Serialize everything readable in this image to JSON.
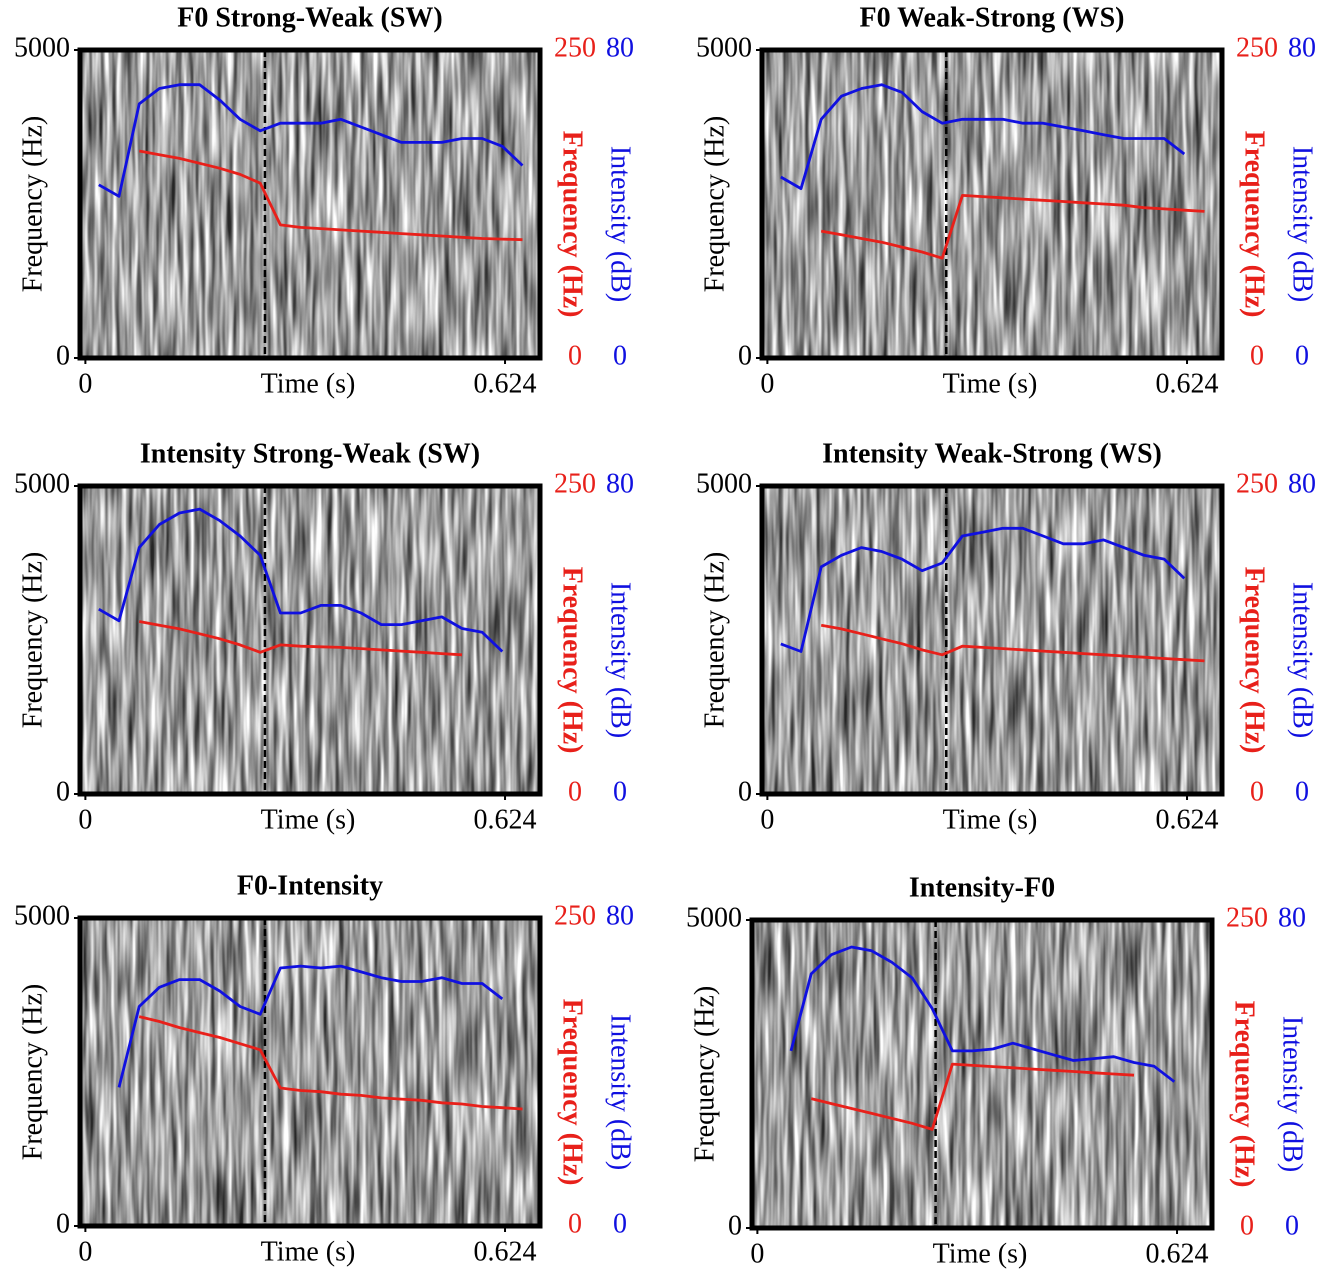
{
  "chart_data": [
    {
      "type": "line",
      "title": "F0 Strong-Weak (SW)",
      "xlabel": "Time (s)",
      "ylabel": "Frequency (Hz)",
      "y2label": "Frequency (Hz)",
      "y3label": "Intensity (dB)",
      "xlim": [
        -0.008,
        0.676
      ],
      "xticks": [
        0,
        0.624
      ],
      "ylim": [
        0,
        5000
      ],
      "yticks": [
        0,
        5000
      ],
      "y2lim": [
        0,
        250
      ],
      "y2ticks": [
        0,
        250
      ],
      "y3lim": [
        0,
        80
      ],
      "y3ticks": [
        0,
        80
      ],
      "y2color": "#e8201a",
      "y3color": "#1010e0",
      "boundary": 0.267,
      "x": [
        0.02,
        0.05,
        0.08,
        0.11,
        0.14,
        0.17,
        0.2,
        0.23,
        0.26,
        0.29,
        0.32,
        0.35,
        0.38,
        0.41,
        0.44,
        0.47,
        0.5,
        0.53,
        0.56,
        0.59,
        0.62,
        0.65
      ],
      "series": [
        {
          "color": "#e8201a",
          "axis": "y2",
          "values": [
            null,
            null,
            168,
            165,
            162,
            158,
            154,
            149,
            142,
            108,
            106,
            105,
            104,
            103,
            102,
            101,
            100,
            99,
            98,
            97,
            96.5,
            96
          ]
        },
        {
          "color": "#1010e0",
          "axis": "y3",
          "values": [
            45,
            42,
            66,
            70,
            71,
            71,
            67,
            62,
            59,
            61,
            61,
            61,
            62,
            60,
            58,
            56,
            56,
            56,
            57,
            57,
            55,
            50
          ]
        }
      ]
    },
    {
      "type": "line",
      "title": "F0 Weak-Strong (WS)",
      "xlabel": "Time (s)",
      "ylabel": "Frequency (Hz)",
      "y2label": "Frequency (Hz)",
      "y3label": "Intensity (dB)",
      "xlim": [
        -0.008,
        0.676
      ],
      "xticks": [
        0,
        0.624
      ],
      "ylim": [
        0,
        5000
      ],
      "yticks": [
        0,
        5000
      ],
      "y2lim": [
        0,
        250
      ],
      "y2ticks": [
        0,
        250
      ],
      "y3lim": [
        0,
        80
      ],
      "y3ticks": [
        0,
        80
      ],
      "y2color": "#e8201a",
      "y3color": "#1010e0",
      "boundary": 0.266,
      "x": [
        0.02,
        0.05,
        0.08,
        0.11,
        0.14,
        0.17,
        0.2,
        0.23,
        0.26,
        0.29,
        0.32,
        0.35,
        0.38,
        0.41,
        0.44,
        0.47,
        0.5,
        0.53,
        0.56,
        0.59,
        0.62,
        0.65
      ],
      "series": [
        {
          "color": "#e8201a",
          "axis": "y2",
          "values": [
            null,
            null,
            103,
            100,
            97,
            94,
            90,
            86,
            81,
            132,
            131,
            130,
            129,
            128,
            127,
            126,
            125,
            124,
            122,
            121,
            120,
            119
          ]
        },
        {
          "color": "#1010e0",
          "axis": "y3",
          "values": [
            47,
            44,
            62,
            68,
            70,
            71,
            69,
            64,
            61,
            62,
            62,
            62,
            61,
            61,
            60,
            59,
            58,
            57,
            57,
            57,
            53,
            null
          ]
        }
      ]
    },
    {
      "type": "line",
      "title": "Intensity Strong-Weak (SW)",
      "xlabel": "Time (s)",
      "ylabel": "Frequency (Hz)",
      "y2label": "Frequency (Hz)",
      "y3label": "Intensity (dB)",
      "xlim": [
        -0.008,
        0.676
      ],
      "xticks": [
        0,
        0.624
      ],
      "ylim": [
        0,
        5000
      ],
      "yticks": [
        0,
        5000
      ],
      "y2lim": [
        0,
        250
      ],
      "y2ticks": [
        0,
        250
      ],
      "y3lim": [
        0,
        80
      ],
      "y3ticks": [
        0,
        80
      ],
      "y2color": "#e8201a",
      "y3color": "#1010e0",
      "boundary": 0.267,
      "x": [
        0.02,
        0.05,
        0.08,
        0.11,
        0.14,
        0.17,
        0.2,
        0.23,
        0.26,
        0.29,
        0.32,
        0.35,
        0.38,
        0.41,
        0.44,
        0.47,
        0.5,
        0.53,
        0.56,
        0.59,
        0.62,
        0.65
      ],
      "series": [
        {
          "color": "#e8201a",
          "axis": "y2",
          "values": [
            null,
            null,
            140,
            137,
            134,
            130,
            126,
            121,
            115,
            121,
            120,
            119.5,
            119,
            118,
            117,
            116,
            115,
            114,
            113,
            null,
            null,
            null
          ]
        },
        {
          "color": "#1010e0",
          "axis": "y3",
          "values": [
            48,
            45,
            64,
            70,
            73,
            74,
            71,
            67,
            62,
            47,
            47,
            49,
            49,
            47,
            44,
            44,
            45,
            46,
            43,
            42,
            37,
            null
          ]
        }
      ]
    },
    {
      "type": "line",
      "title": "Intensity Weak-Strong (WS)",
      "xlabel": "Time (s)",
      "ylabel": "Frequency (Hz)",
      "y2label": "Frequency (Hz)",
      "y3label": "Intensity (dB)",
      "xlim": [
        -0.008,
        0.676
      ],
      "xticks": [
        0,
        0.624
      ],
      "ylim": [
        0,
        5000
      ],
      "yticks": [
        0,
        5000
      ],
      "y2lim": [
        0,
        250
      ],
      "y2ticks": [
        0,
        250
      ],
      "y3lim": [
        0,
        80
      ],
      "y3ticks": [
        0,
        80
      ],
      "y2color": "#e8201a",
      "y3color": "#1010e0",
      "boundary": 0.266,
      "x": [
        0.02,
        0.05,
        0.08,
        0.11,
        0.14,
        0.17,
        0.2,
        0.23,
        0.26,
        0.29,
        0.32,
        0.35,
        0.38,
        0.41,
        0.44,
        0.47,
        0.5,
        0.53,
        0.56,
        0.59,
        0.62,
        0.65
      ],
      "series": [
        {
          "color": "#e8201a",
          "axis": "y2",
          "values": [
            null,
            null,
            137,
            134,
            130,
            126,
            122,
            117,
            113,
            120,
            119,
            118,
            117,
            116,
            115,
            114,
            113,
            112,
            111,
            110,
            109,
            108
          ]
        },
        {
          "color": "#1010e0",
          "axis": "y3",
          "values": [
            39,
            37,
            59,
            62,
            64,
            63,
            61,
            58,
            60,
            67,
            68,
            69,
            69,
            67,
            65,
            65,
            66,
            64,
            62,
            61,
            56,
            null
          ]
        }
      ]
    },
    {
      "type": "line",
      "title": "F0-Intensity",
      "xlabel": "Time (s)",
      "ylabel": "Frequency (Hz)",
      "y2label": "Frequency (Hz)",
      "y3label": "Intensity (dB)",
      "xlim": [
        -0.008,
        0.676
      ],
      "xticks": [
        0,
        0.624
      ],
      "ylim": [
        0,
        5000
      ],
      "yticks": [
        0,
        5000
      ],
      "y2lim": [
        0,
        250
      ],
      "y2ticks": [
        0,
        250
      ],
      "y3lim": [
        0,
        80
      ],
      "y3ticks": [
        0,
        80
      ],
      "y2color": "#e8201a",
      "y3color": "#1010e0",
      "boundary": 0.267,
      "x": [
        0.02,
        0.05,
        0.08,
        0.11,
        0.14,
        0.17,
        0.2,
        0.23,
        0.26,
        0.29,
        0.32,
        0.35,
        0.38,
        0.41,
        0.44,
        0.47,
        0.5,
        0.53,
        0.56,
        0.59,
        0.62,
        0.65
      ],
      "series": [
        {
          "color": "#e8201a",
          "axis": "y2",
          "values": [
            null,
            null,
            170,
            166,
            161,
            157,
            153,
            148,
            143,
            112,
            110,
            109,
            107,
            106,
            104,
            103,
            102,
            100,
            99,
            97,
            96,
            95
          ]
        },
        {
          "color": "#1010e0",
          "axis": "y3",
          "values": [
            null,
            36,
            57,
            62,
            64,
            64,
            61,
            57,
            55,
            67,
            67.5,
            67,
            67.5,
            66,
            64.5,
            63.5,
            63.5,
            64.5,
            63,
            63,
            59,
            null
          ]
        }
      ]
    },
    {
      "type": "line",
      "title": "Intensity-F0",
      "xlabel": "Time (s)",
      "ylabel": "Frequency (Hz)",
      "y2label": "Frequency (Hz)",
      "y3label": "Intensity (dB)",
      "xlim": [
        -0.008,
        0.676
      ],
      "xticks": [
        0,
        0.624
      ],
      "ylim": [
        0,
        5000
      ],
      "yticks": [
        0,
        5000
      ],
      "y2lim": [
        0,
        250
      ],
      "y2ticks": [
        0,
        250
      ],
      "y3lim": [
        0,
        80
      ],
      "y3ticks": [
        0,
        80
      ],
      "y2color": "#e8201a",
      "y3color": "#1010e0",
      "boundary": 0.265,
      "x": [
        0.02,
        0.05,
        0.08,
        0.11,
        0.14,
        0.17,
        0.2,
        0.23,
        0.26,
        0.29,
        0.32,
        0.35,
        0.38,
        0.41,
        0.44,
        0.47,
        0.5,
        0.53,
        0.56,
        0.59,
        0.62,
        0.65
      ],
      "series": [
        {
          "color": "#e8201a",
          "axis": "y2",
          "values": [
            null,
            null,
            105,
            101,
            97,
            93,
            89,
            85,
            80,
            133,
            132,
            131,
            130,
            129,
            128,
            127,
            126,
            125,
            124,
            null,
            null,
            null
          ]
        },
        {
          "color": "#1010e0",
          "axis": "y3",
          "values": [
            null,
            46,
            66,
            71,
            73,
            72,
            69,
            65,
            57,
            46,
            46,
            46.5,
            48,
            46.5,
            45,
            43.5,
            44,
            44.5,
            43,
            42,
            38,
            null
          ]
        }
      ]
    }
  ]
}
